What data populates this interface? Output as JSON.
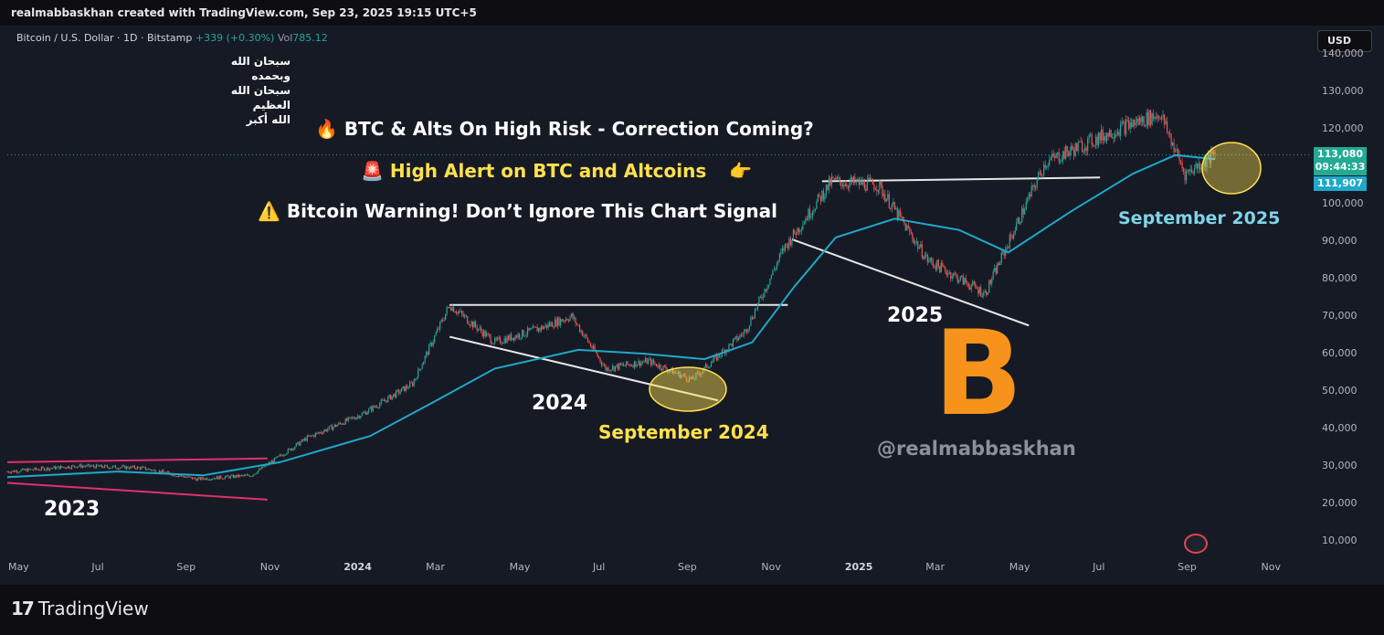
{
  "header": {
    "credit": "realmabbaskhan created with TradingView.com, Sep 23, 2025 19:15 UTC+5"
  },
  "legend": {
    "symbol": "Bitcoin / U.S. Dollar · 1D · Bitstamp",
    "change": "+339 (+0.30%)",
    "vol_label": "Vol",
    "vol_value": "785.12"
  },
  "currency_button": "USD",
  "arabic_text": [
    "سبحان الله وبحمده",
    "سبحان الله العظيم",
    "الله أكبر"
  ],
  "headlines": {
    "line1_icon": "🔥",
    "line1": "BTC & Alts On High Risk - Correction Coming?",
    "line2_icon": "🚨",
    "line2": "High Alert on BTC and Altcoins",
    "line2_tail": "👉",
    "line3_icon": "⚠️",
    "line3": "Bitcoin Warning! Don’t Ignore This Chart Signal"
  },
  "annotations": {
    "year_2023": "2023",
    "year_2024": "2024",
    "year_2025": "2025",
    "september_2024": "September 2024",
    "september_2025": "September 2025",
    "handle": "@realmabbaskhan",
    "btc_symbol": "B"
  },
  "price_labels": {
    "last_price": "113,080",
    "countdown": "09:44:33",
    "ema": "111,907"
  },
  "footer": {
    "logo_mark": "17",
    "brand": "TradingView"
  },
  "colors": {
    "up": "#26a69a",
    "down": "#ef5350",
    "ema": "#1fa8c9",
    "trendline_white": "#e6e6e6",
    "trendline_pink": "#e0306b",
    "highlight": "#ffe14d",
    "bitcoin_orange": "#f7931a"
  },
  "chart_data": {
    "type": "line",
    "title": "",
    "xlabel": "",
    "ylabel": "",
    "x_ticks": [
      "May",
      "Jul",
      "Sep",
      "Nov",
      "2024",
      "Mar",
      "May",
      "Jul",
      "Sep",
      "Nov",
      "2025",
      "Mar",
      "May",
      "Jul",
      "Sep",
      "Nov"
    ],
    "y_ticks": [
      "10,000",
      "20,000",
      "30,000",
      "40,000",
      "50,000",
      "60,000",
      "70,000",
      "80,000",
      "90,000",
      "100,000",
      "110,000",
      "120,000",
      "130,000",
      "140,000"
    ],
    "ylim": [
      7000,
      145000
    ],
    "xlim": [
      "2023-04-25",
      "2025-11-30"
    ],
    "grid": false,
    "series": [
      {
        "values_x": [
          "2023-04-25",
          "2023-06-15",
          "2023-08-01",
          "2023-09-10",
          "2023-10-20",
          "2023-11-30",
          "2024-01-10",
          "2024-02-15",
          "2024-03-13",
          "2024-04-15",
          "2024-05-20",
          "2024-06-10",
          "2024-07-05",
          "2024-08-05",
          "2024-09-06",
          "2024-10-15",
          "2024-11-12",
          "2024-12-17",
          "2025-01-20",
          "2025-02-25",
          "2025-04-08",
          "2025-05-22",
          "2025-07-14",
          "2025-08-14",
          "2025-09-01",
          "2025-09-23"
        ],
        "values": [
          28500,
          30000,
          29500,
          26500,
          27500,
          37500,
          44000,
          52000,
          73000,
          63000,
          67000,
          70000,
          56000,
          58000,
          53000,
          66000,
          88000,
          106000,
          105000,
          85000,
          76000,
          111000,
          120000,
          124000,
          108000,
          113080
        ]
      },
      {
        "values_x": [
          "2023-04-25",
          "2023-07-15",
          "2023-09-15",
          "2023-11-10",
          "2024-01-15",
          "2024-03-01",
          "2024-04-15",
          "2024-06-15",
          "2024-08-01",
          "2024-09-15",
          "2024-10-20",
          "2024-11-20",
          "2024-12-20",
          "2025-02-01",
          "2025-03-20",
          "2025-04-25",
          "2025-06-10",
          "2025-07-25",
          "2025-08-25",
          "2025-09-23"
        ],
        "values": [
          27000,
          28500,
          27500,
          31000,
          38000,
          47000,
          56000,
          61000,
          60000,
          58500,
          63000,
          78000,
          91000,
          96000,
          93000,
          87000,
          98000,
          108000,
          113000,
          111907
        ]
      }
    ],
    "trendlines": [
      {
        "x": [
          "2023-04-25",
          "2023-11-01"
        ],
        "y": [
          31000,
          32000
        ]
      },
      {
        "x": [
          "2023-04-25",
          "2023-11-01"
        ],
        "y": [
          25500,
          21000
        ]
      },
      {
        "x": [
          "2024-03-13",
          "2024-11-15"
        ],
        "y": [
          73000,
          73000
        ]
      },
      {
        "x": [
          "2024-03-13",
          "2024-09-25"
        ],
        "y": [
          64500,
          47500
        ]
      },
      {
        "x": [
          "2024-12-10",
          "2025-07-01"
        ],
        "y": [
          106000,
          107000
        ]
      },
      {
        "x": [
          "2024-11-18",
          "2025-05-10"
        ],
        "y": [
          90500,
          67500
        ]
      }
    ]
  }
}
